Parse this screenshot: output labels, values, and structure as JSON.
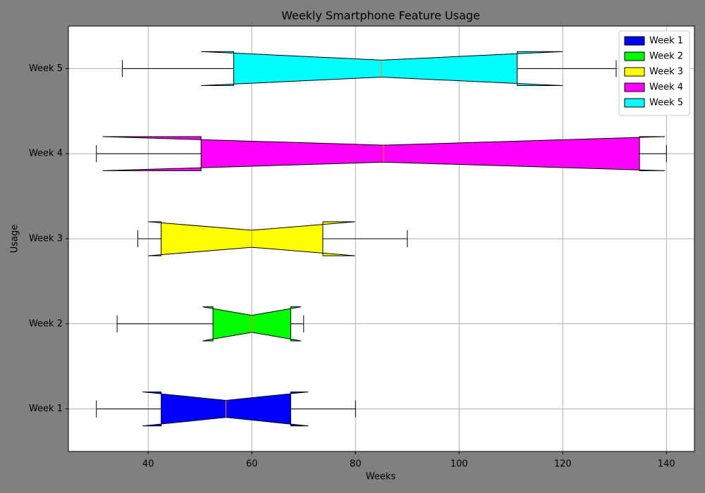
{
  "chart_data": {
    "type": "boxplot",
    "orientation": "horizontal",
    "notched": true,
    "title": "Weekly Smartphone Feature Usage",
    "x_label": "Weeks",
    "y_label": "Usage",
    "categories": [
      "Week 1",
      "Week 2",
      "Week 3",
      "Week 4",
      "Week 5"
    ],
    "series": [
      {
        "name": "Week 1",
        "color": "#0000ff",
        "whisker_low": 30,
        "q1": 42.5,
        "median": 55,
        "q3": 67.5,
        "whisker_high": 80,
        "notch_low": 38.9,
        "notch_high": 70.9
      },
      {
        "name": "Week 2",
        "color": "#00ff00",
        "whisker_low": 34,
        "q1": 52.5,
        "median": 60,
        "q3": 67.5,
        "whisker_high": 70,
        "notch_low": 50.5,
        "notch_high": 69.5
      },
      {
        "name": "Week 3",
        "color": "#ffff00",
        "whisker_low": 38,
        "q1": 42.5,
        "median": 60,
        "q3": 73.7,
        "whisker_high": 90,
        "notch_low": 40,
        "notch_high": 79.9
      },
      {
        "name": "Week 4",
        "color": "#ff00ff",
        "whisker_low": 30,
        "q1": 50.2,
        "median": 85.4,
        "q3": 134.8,
        "whisker_high": 140,
        "notch_low": 31.2,
        "notch_high": 139.7
      },
      {
        "name": "Week 5",
        "color": "#00ffff",
        "whisker_low": 35,
        "q1": 56.5,
        "median": 85,
        "q3": 111.2,
        "whisker_high": 130.3,
        "notch_low": 50.2,
        "notch_high": 120
      }
    ],
    "median_color": "#ff7f0e",
    "xlim": [
      24.6,
      145.4
    ],
    "xticks": [
      40,
      60,
      80,
      100,
      120,
      140
    ],
    "ylim": [
      0.5,
      5.5
    ],
    "grid": true,
    "legend": "upper right"
  }
}
